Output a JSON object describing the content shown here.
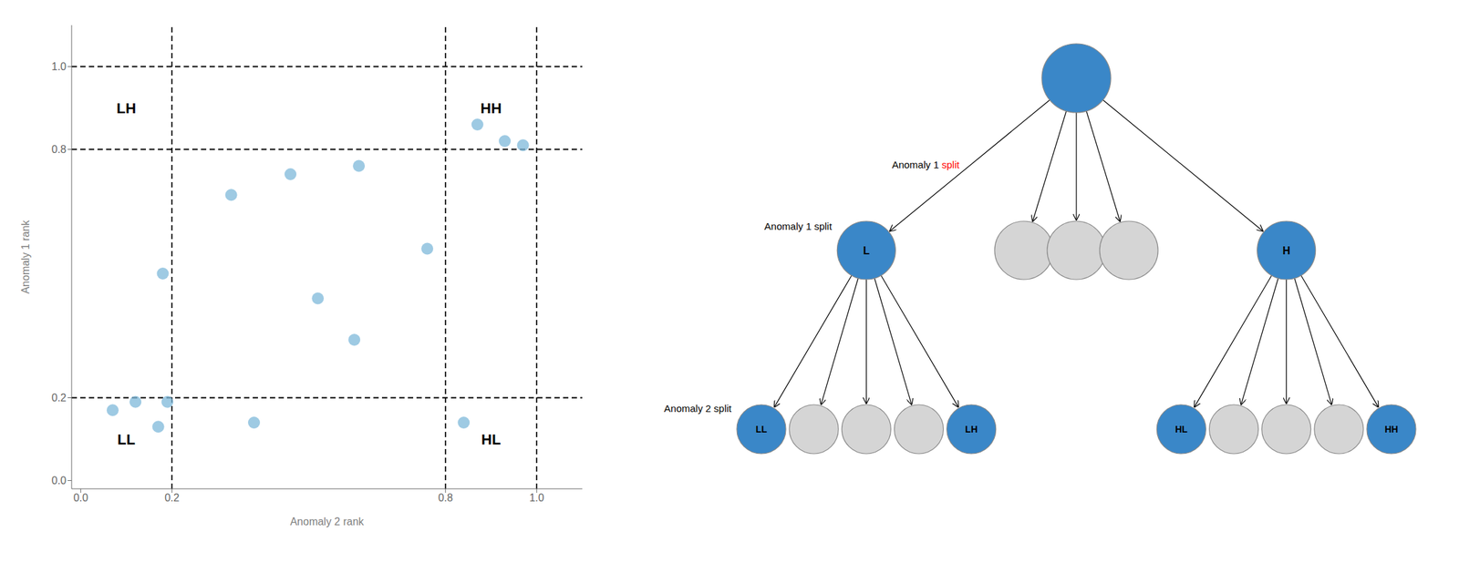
{
  "chart_data": [
    {
      "type": "scatter",
      "x": [
        0.07,
        0.12,
        0.17,
        0.19,
        0.38,
        0.18,
        0.33,
        0.46,
        0.52,
        0.6,
        0.61,
        0.76,
        0.84,
        0.87,
        0.93,
        0.97
      ],
      "values": [
        0.17,
        0.19,
        0.13,
        0.19,
        0.14,
        0.5,
        0.69,
        0.74,
        0.44,
        0.34,
        0.76,
        0.56,
        0.14,
        0.86,
        0.82,
        0.81
      ],
      "color": "#7EB8D9",
      "xlabel": "Anomaly 2 rank",
      "ylabel": "Anomaly 1 rank",
      "xlim": [
        -0.02,
        1.1
      ],
      "ylim": [
        -0.02,
        1.1
      ],
      "xticks": [
        {
          "value": 0,
          "label": "0.0"
        },
        0.2,
        0.8,
        {
          "value": 1,
          "label": "1.0"
        }
      ],
      "yticks": [
        {
          "value": 0,
          "label": "0.0"
        },
        0.2,
        0.8,
        {
          "value": 1,
          "label": "1.0"
        }
      ],
      "reference_lines_x": [
        0.2,
        0.8,
        1.0
      ],
      "reference_lines_y": [
        0.2,
        0.8,
        1.0
      ],
      "line_style": "dashed",
      "grid": false,
      "annotations": [
        {
          "text": "LL",
          "x": 0.1,
          "y": 0.1
        },
        {
          "text": "LH",
          "x": 0.1,
          "y": 0.9
        },
        {
          "text": "HL",
          "x": 0.9,
          "y": 0.1
        },
        {
          "text": "HH",
          "x": 0.9,
          "y": 0.9
        }
      ]
    },
    {
      "type": "tree",
      "edge_color": "#888888",
      "root": {
        "color": "#3A87C8",
        "children": [
          {
            "label": "L",
            "color": "#3A87C8",
            "children": [
              {
                "label": "LL",
                "color": "#3A87C8"
              },
              {
                "color": "#D5D5D5"
              },
              {
                "color": "#D5D5D5"
              },
              {
                "color": "#D5D5D5"
              },
              {
                "label": "LH",
                "color": "#3A87C8"
              }
            ]
          },
          {
            "color": "#D5D5D5"
          },
          {
            "color": "#D5D5D5"
          },
          {
            "color": "#D5D5D5"
          },
          {
            "label": "H",
            "color": "#3A87C8",
            "children": [
              {
                "label": "HL",
                "color": "#3A87C8"
              },
              {
                "color": "#D5D5D5"
              },
              {
                "color": "#D5D5D5"
              },
              {
                "color": "#D5D5D5"
              },
              {
                "label": "HH",
                "color": "#3A87C8"
              }
            ]
          }
        ]
      },
      "annotations": [
        {
          "text": "Anomaly 1 ",
          "color": "black"
        },
        {
          "text": "split",
          "color": "red"
        },
        {
          "text": "Anomaly 1 split",
          "color": "black"
        },
        {
          "text": "Anomaly 2 split",
          "color": "black"
        }
      ]
    }
  ]
}
